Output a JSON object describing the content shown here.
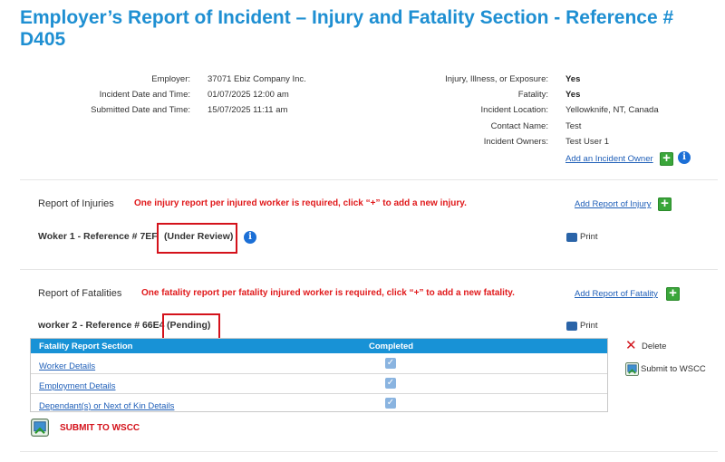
{
  "page_title": "Employer’s Report of Incident – Injury and Fatality Section - Reference # D405",
  "summary": {
    "left": [
      {
        "label": "Employer:",
        "value": "37071 Ebiz Company Inc."
      },
      {
        "label": "Incident Date and Time:",
        "value": "01/07/2025 12:00 am"
      },
      {
        "label": "Submitted Date and Time:",
        "value": "15/07/2025 11:11 am"
      }
    ],
    "right": [
      {
        "label": "Injury, Illness, or Exposure:",
        "value": "Yes"
      },
      {
        "label": "Fatality:",
        "value": "Yes"
      },
      {
        "label": "Incident Location:",
        "value": "Yellowknife, NT, Canada"
      },
      {
        "label": "Contact Name:",
        "value": "Test"
      },
      {
        "label": "Incident Owners:",
        "value": "Test User 1"
      }
    ],
    "add_owner_link": "Add an Incident Owner"
  },
  "injuries": {
    "title": "Report of Injuries",
    "warning": "One injury report per injured worker is required, click “+” to add a new injury.",
    "add_link": "Add Report of Injury",
    "worker_ref": "Woker 1 - Reference # 7EF",
    "status": "(Under Review)",
    "print": "Print"
  },
  "fatalities": {
    "title": "Report of Fatalities",
    "warning": "One fatality report per fatality injured worker is required, click “+” to add a new fatality.",
    "add_link": "Add Report of Fatality",
    "worker_ref": "worker 2 - Reference # 66E4",
    "status": "(Pending)",
    "print": "Print",
    "table": {
      "col_section": "Fatality Report Section",
      "col_completed": "Completed",
      "rows": [
        {
          "section": "Worker Details",
          "completed": true
        },
        {
          "section": "Employment Details",
          "completed": true
        },
        {
          "section": "Dependant(s) or Next of Kin Details",
          "completed": true
        }
      ]
    },
    "delete_label": "Delete",
    "submit_small_label": "Submit to WSCC"
  },
  "submit_label": "SUBMIT TO WSCC",
  "colors": {
    "title": "#1e8fd2",
    "warning": "#e0191b",
    "header": "#1892d6",
    "highlight": "#d4121b"
  }
}
